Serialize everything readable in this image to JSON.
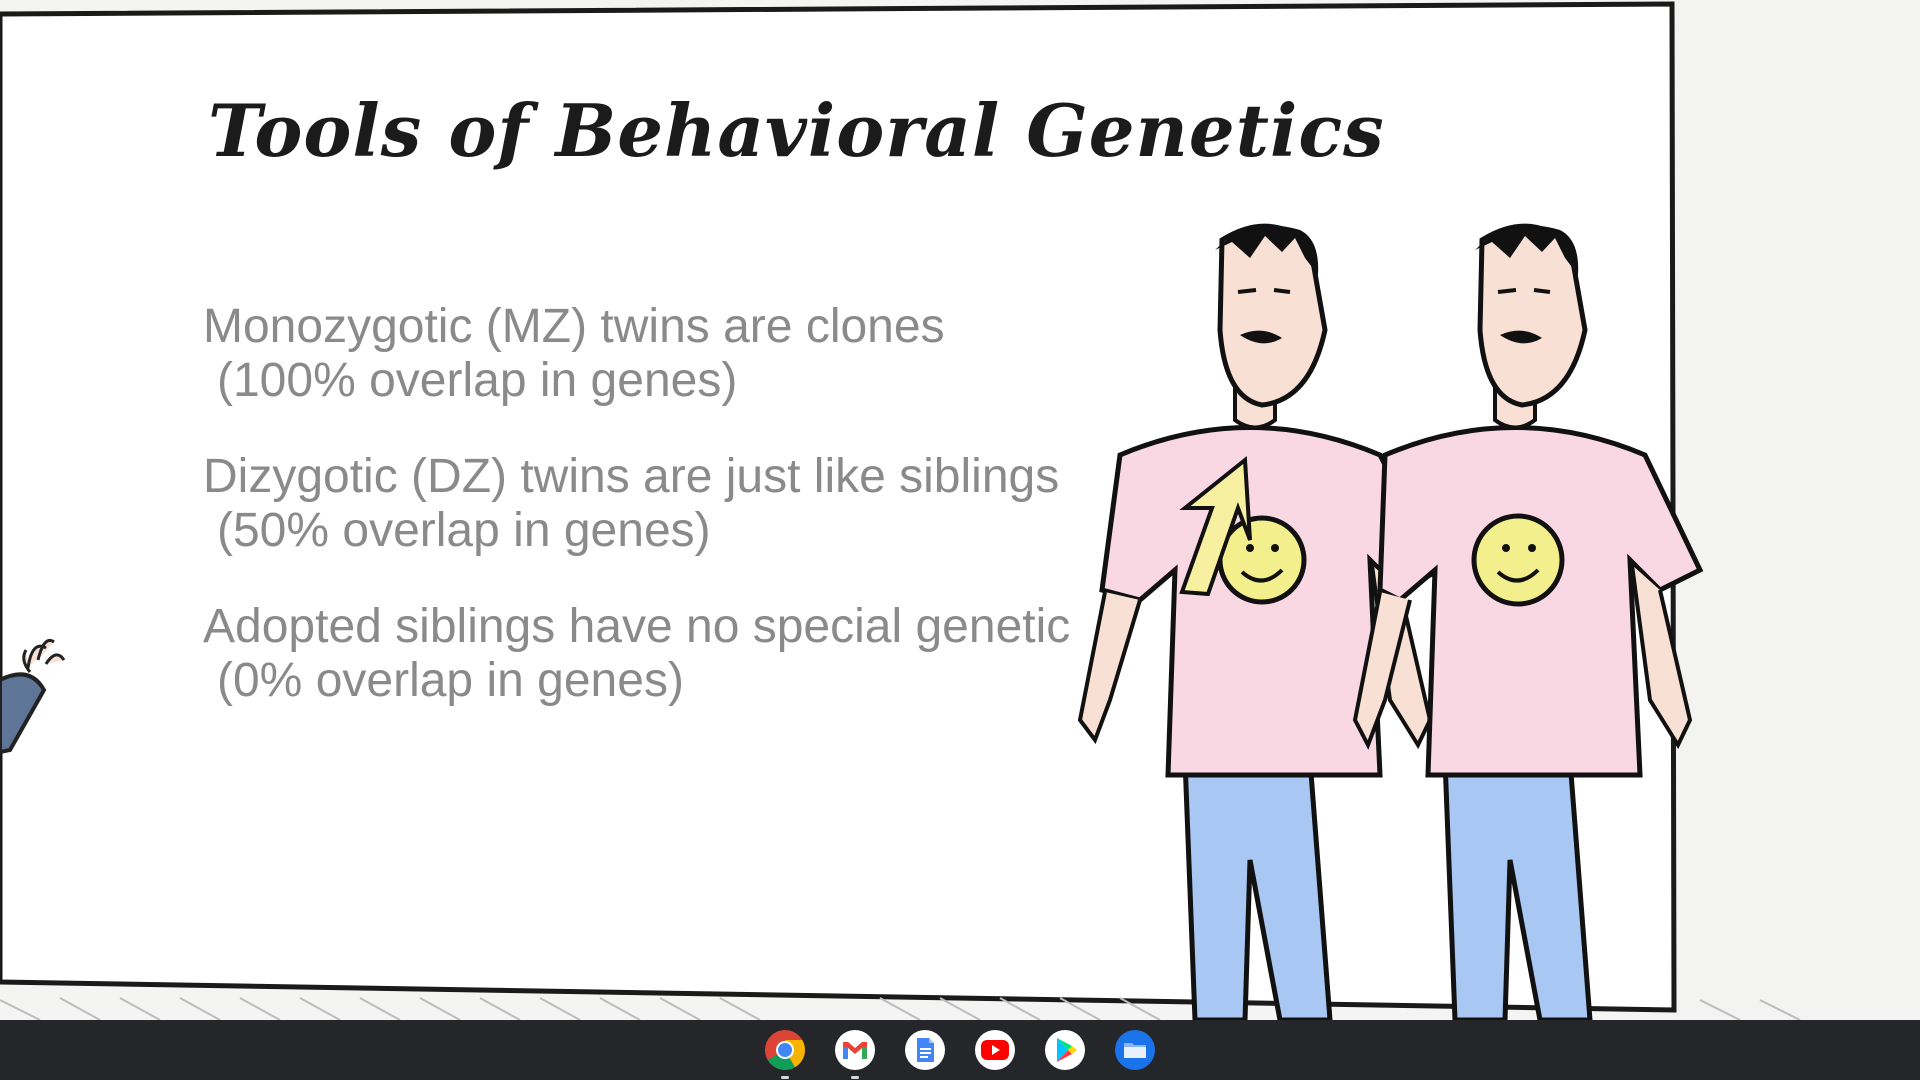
{
  "slide": {
    "title": "Tools of Behavioral Genetics",
    "bullets": [
      {
        "main": "Monozygotic (MZ) twins are clones",
        "sub": "(100% overlap in genes)"
      },
      {
        "main": "Dizygotic (DZ) twins are just like siblings",
        "sub": "(50% overlap in genes)"
      },
      {
        "main": "Adopted siblings have no special genetic",
        "sub": "(0% overlap in genes)"
      }
    ]
  },
  "colors": {
    "shirt": "#f9d8e4",
    "pants": "#a8c7f2",
    "smiley": "#f3ef8c",
    "arrow": "#f6f0a0",
    "shelf": "#24262a"
  },
  "shelf": {
    "apps": [
      {
        "name": "Chrome",
        "icon": "chrome-icon",
        "running": true
      },
      {
        "name": "Gmail",
        "icon": "gmail-icon",
        "running": true
      },
      {
        "name": "Docs",
        "icon": "docs-icon",
        "running": false
      },
      {
        "name": "YouTube",
        "icon": "youtube-icon",
        "running": false
      },
      {
        "name": "Play Store",
        "icon": "play-store-icon",
        "running": false
      },
      {
        "name": "Files",
        "icon": "files-icon",
        "running": false
      }
    ]
  }
}
